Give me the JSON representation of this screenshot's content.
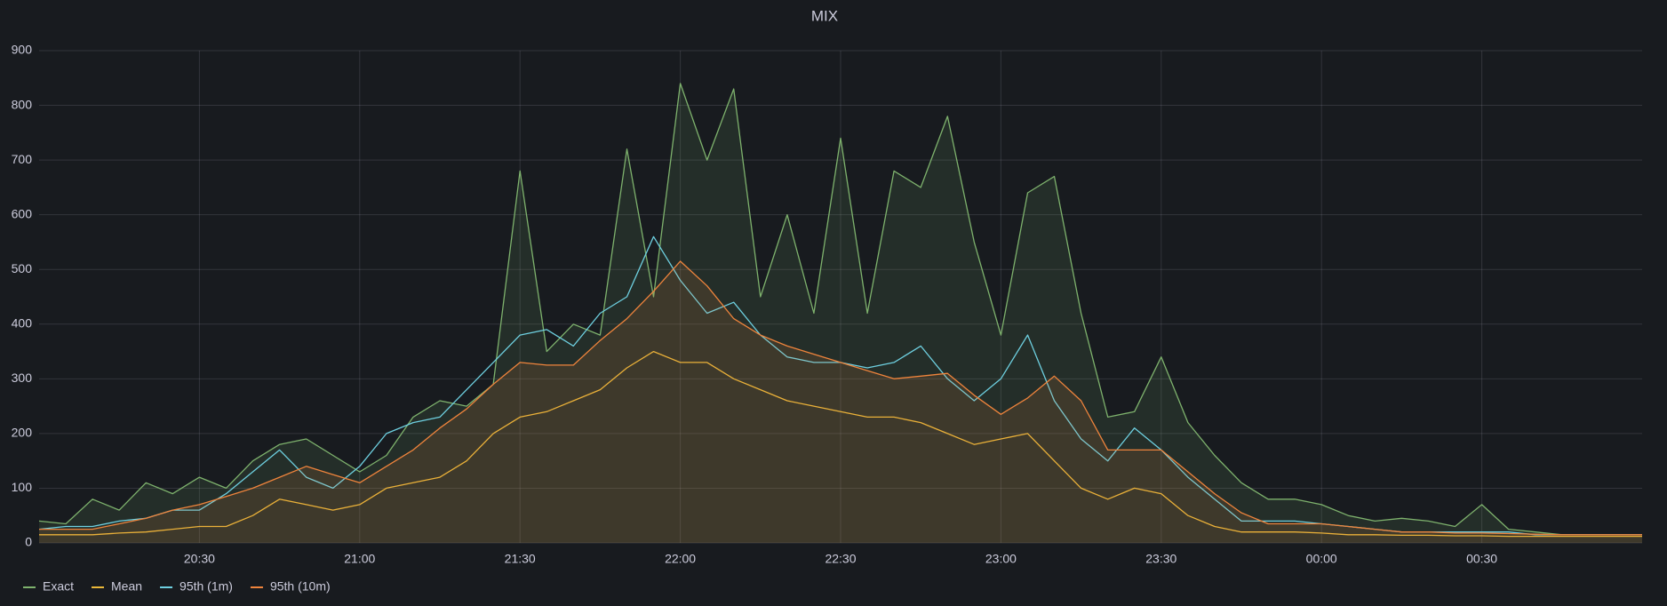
{
  "chart_data": {
    "type": "line",
    "title": "MIX",
    "x": [
      "20:00",
      "20:05",
      "20:10",
      "20:15",
      "20:20",
      "20:25",
      "20:30",
      "20:35",
      "20:40",
      "20:45",
      "20:50",
      "20:55",
      "21:00",
      "21:05",
      "21:10",
      "21:15",
      "21:20",
      "21:25",
      "21:30",
      "21:35",
      "21:40",
      "21:45",
      "21:50",
      "21:55",
      "22:00",
      "22:05",
      "22:10",
      "22:15",
      "22:20",
      "22:25",
      "22:30",
      "22:35",
      "22:40",
      "22:45",
      "22:50",
      "22:55",
      "23:00",
      "23:05",
      "23:10",
      "23:15",
      "23:20",
      "23:25",
      "23:30",
      "23:35",
      "23:40",
      "23:45",
      "23:50",
      "23:55",
      "00:00",
      "00:05",
      "00:10",
      "00:15",
      "00:20",
      "00:25",
      "00:30",
      "00:35",
      "00:40",
      "00:45",
      "00:50",
      "00:55",
      "01:00"
    ],
    "series": [
      {
        "name": "Exact",
        "color": "#7eb26d",
        "fill": true,
        "values": [
          40,
          35,
          80,
          60,
          110,
          90,
          120,
          100,
          150,
          180,
          190,
          160,
          130,
          160,
          230,
          260,
          250,
          290,
          680,
          350,
          400,
          380,
          720,
          450,
          840,
          700,
          830,
          450,
          600,
          420,
          740,
          420,
          680,
          650,
          780,
          550,
          380,
          640,
          670,
          420,
          230,
          240,
          340,
          220,
          160,
          110,
          80,
          80,
          70,
          50,
          40,
          45,
          40,
          30,
          70,
          25,
          20,
          15,
          15,
          15,
          15
        ]
      },
      {
        "name": "Mean",
        "color": "#eab839",
        "fill": false,
        "values": [
          15,
          15,
          15,
          18,
          20,
          25,
          30,
          30,
          50,
          80,
          70,
          60,
          70,
          100,
          110,
          120,
          150,
          200,
          230,
          240,
          260,
          280,
          320,
          350,
          330,
          330,
          300,
          280,
          260,
          250,
          240,
          230,
          230,
          220,
          200,
          180,
          190,
          200,
          150,
          100,
          80,
          100,
          90,
          50,
          30,
          20,
          20,
          20,
          18,
          15,
          15,
          14,
          14,
          13,
          13,
          12,
          12,
          12,
          12,
          12,
          12
        ]
      },
      {
        "name": "95th (1m)",
        "color": "#6ed0e0",
        "fill": false,
        "values": [
          25,
          30,
          30,
          40,
          45,
          60,
          60,
          90,
          130,
          170,
          120,
          100,
          140,
          200,
          220,
          230,
          280,
          330,
          380,
          390,
          360,
          420,
          450,
          560,
          480,
          420,
          440,
          380,
          340,
          330,
          330,
          320,
          330,
          360,
          300,
          260,
          300,
          380,
          260,
          190,
          150,
          210,
          170,
          120,
          80,
          40,
          40,
          40,
          35,
          30,
          25,
          20,
          20,
          20,
          20,
          20,
          15,
          15,
          15,
          15,
          15
        ]
      },
      {
        "name": "95th (10m)",
        "color": "#ef843c",
        "fill": true,
        "values": [
          25,
          25,
          25,
          35,
          45,
          60,
          70,
          85,
          100,
          120,
          140,
          125,
          110,
          140,
          170,
          210,
          245,
          290,
          330,
          325,
          325,
          370,
          410,
          460,
          515,
          470,
          410,
          380,
          360,
          345,
          330,
          315,
          300,
          305,
          310,
          270,
          235,
          265,
          305,
          260,
          170,
          170,
          170,
          130,
          90,
          55,
          35,
          35,
          35,
          30,
          25,
          20,
          20,
          18,
          18,
          17,
          16,
          15,
          15,
          15,
          15
        ]
      }
    ],
    "xlim": [
      "20:00",
      "01:00"
    ],
    "xticks": [
      "20:30",
      "21:00",
      "21:30",
      "22:00",
      "22:30",
      "23:00",
      "23:30",
      "00:00",
      "00:30"
    ],
    "ylim": [
      0,
      900
    ],
    "yticks": [
      0,
      100,
      200,
      300,
      400,
      500,
      600,
      700,
      800,
      900
    ],
    "grid": true,
    "legend": "bottom-left"
  }
}
